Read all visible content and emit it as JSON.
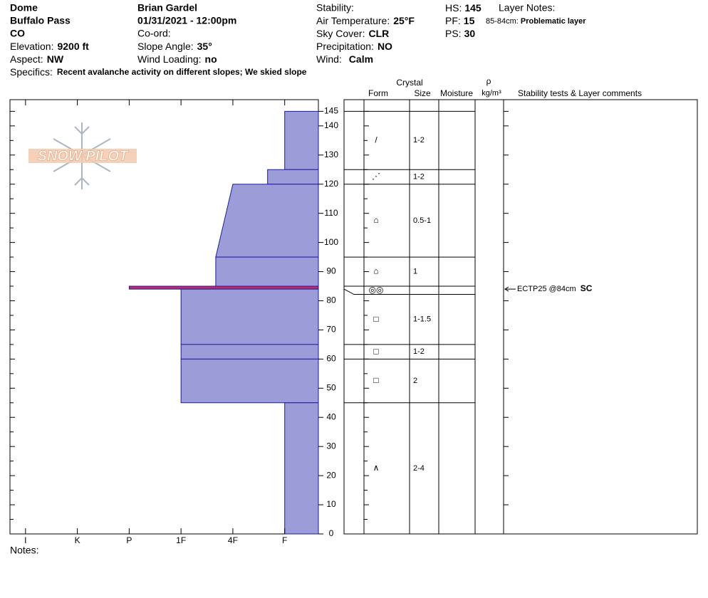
{
  "site": {
    "name": "Dome",
    "location": "Buffalo Pass",
    "state": "CO",
    "elevation_label": "Elevation:",
    "elevation": "9200 ft",
    "aspect_label": "Aspect:",
    "aspect": "NW"
  },
  "observer": {
    "name": "Brian Gardel",
    "datetime": "01/31/2021 - 12:00pm",
    "coord_label": "Co-ord:",
    "slope_label": "Slope Angle:",
    "slope": "35°",
    "wind_loading_label": "Wind Loading:",
    "wind_loading": "no"
  },
  "conditions": {
    "stability_label": "Stability:",
    "air_temp_label": "Air Temperature:",
    "air_temp": "25°F",
    "sky_label": "Sky Cover:",
    "sky": "CLR",
    "precip_label": "Precipitation:",
    "precip": "NO",
    "wind_label": "Wind:",
    "wind": "Calm"
  },
  "depths": {
    "hs_label": "HS:",
    "hs": 145,
    "pf_label": "PF:",
    "pf": 15,
    "ps_label": "PS:",
    "ps": 30
  },
  "layer_notes": {
    "title": "Layer Notes:",
    "range": "85-84cm:",
    "note": "Problematic layer"
  },
  "specifics": {
    "label": "Specifics:",
    "text": "Recent avalanche activity on different slopes; We skied slope"
  },
  "notes_label": "Notes:",
  "logo": "SNOW PILOT",
  "table_headers": {
    "crystal": "Crystal",
    "form": "Form",
    "size": "Size",
    "moisture": "Moisture",
    "rho": "ρ",
    "density_unit": "kg/m³",
    "comments": "Stability tests & Layer comments"
  },
  "chart_data": {
    "type": "snow-profile",
    "ylim": [
      0,
      149
    ],
    "yticks": [
      0,
      10,
      20,
      30,
      40,
      50,
      60,
      70,
      80,
      90,
      100,
      110,
      120,
      130,
      140,
      145
    ],
    "minor_yticks": [
      5,
      15,
      25,
      35,
      45,
      55,
      65,
      75,
      85,
      95,
      105,
      115,
      125,
      135
    ],
    "xlim": [
      6.3,
      0.35
    ],
    "xticks": [
      {
        "value": 6,
        "label": "I"
      },
      {
        "value": 5,
        "label": "K"
      },
      {
        "value": 4,
        "label": "P"
      },
      {
        "value": 3,
        "label": "1F"
      },
      {
        "value": 2,
        "label": "4F"
      },
      {
        "value": 1,
        "label": "F"
      }
    ],
    "fill": "#9c9cd8",
    "edge": "#1c1ca0",
    "highlight": "#c02a6a",
    "layers": [
      {
        "top": 145,
        "bottom": 125,
        "hardness_top": 1,
        "hardness_bottom": 1,
        "form": "/",
        "size": "1-2"
      },
      {
        "top": 125,
        "bottom": 120,
        "hardness_top": 1.33,
        "hardness_bottom": 1.33,
        "form": "⋰",
        "size": "1-2"
      },
      {
        "top": 120,
        "bottom": 95,
        "hardness_top": 2,
        "hardness_bottom": 2.33,
        "form": "⌂",
        "size": "0.5-1"
      },
      {
        "top": 95,
        "bottom": 85,
        "hardness_top": 2.33,
        "hardness_bottom": 2.33,
        "form": "⌂",
        "size": "1"
      },
      {
        "top": 85,
        "bottom": 84,
        "hardness_top": 4,
        "hardness_bottom": 4,
        "form": "◎◎",
        "problematic": true
      },
      {
        "top": 84,
        "bottom": 65,
        "hardness_top": 3,
        "hardness_bottom": 3,
        "form": "□",
        "size": "1-1.5"
      },
      {
        "top": 65,
        "bottom": 60,
        "hardness_top": 3,
        "hardness_bottom": 3,
        "form": "□",
        "size": "1-2"
      },
      {
        "top": 60,
        "bottom": 45,
        "hardness_top": 3,
        "hardness_bottom": 3,
        "form": "□",
        "size": "2"
      },
      {
        "top": 45,
        "bottom": 0,
        "hardness_top": 1,
        "hardness_bottom": 1,
        "form": "∧",
        "size": "2-4"
      }
    ],
    "tests": [
      {
        "depth": 84,
        "text": "ECTP25 @84cm",
        "character": "SC"
      }
    ]
  }
}
